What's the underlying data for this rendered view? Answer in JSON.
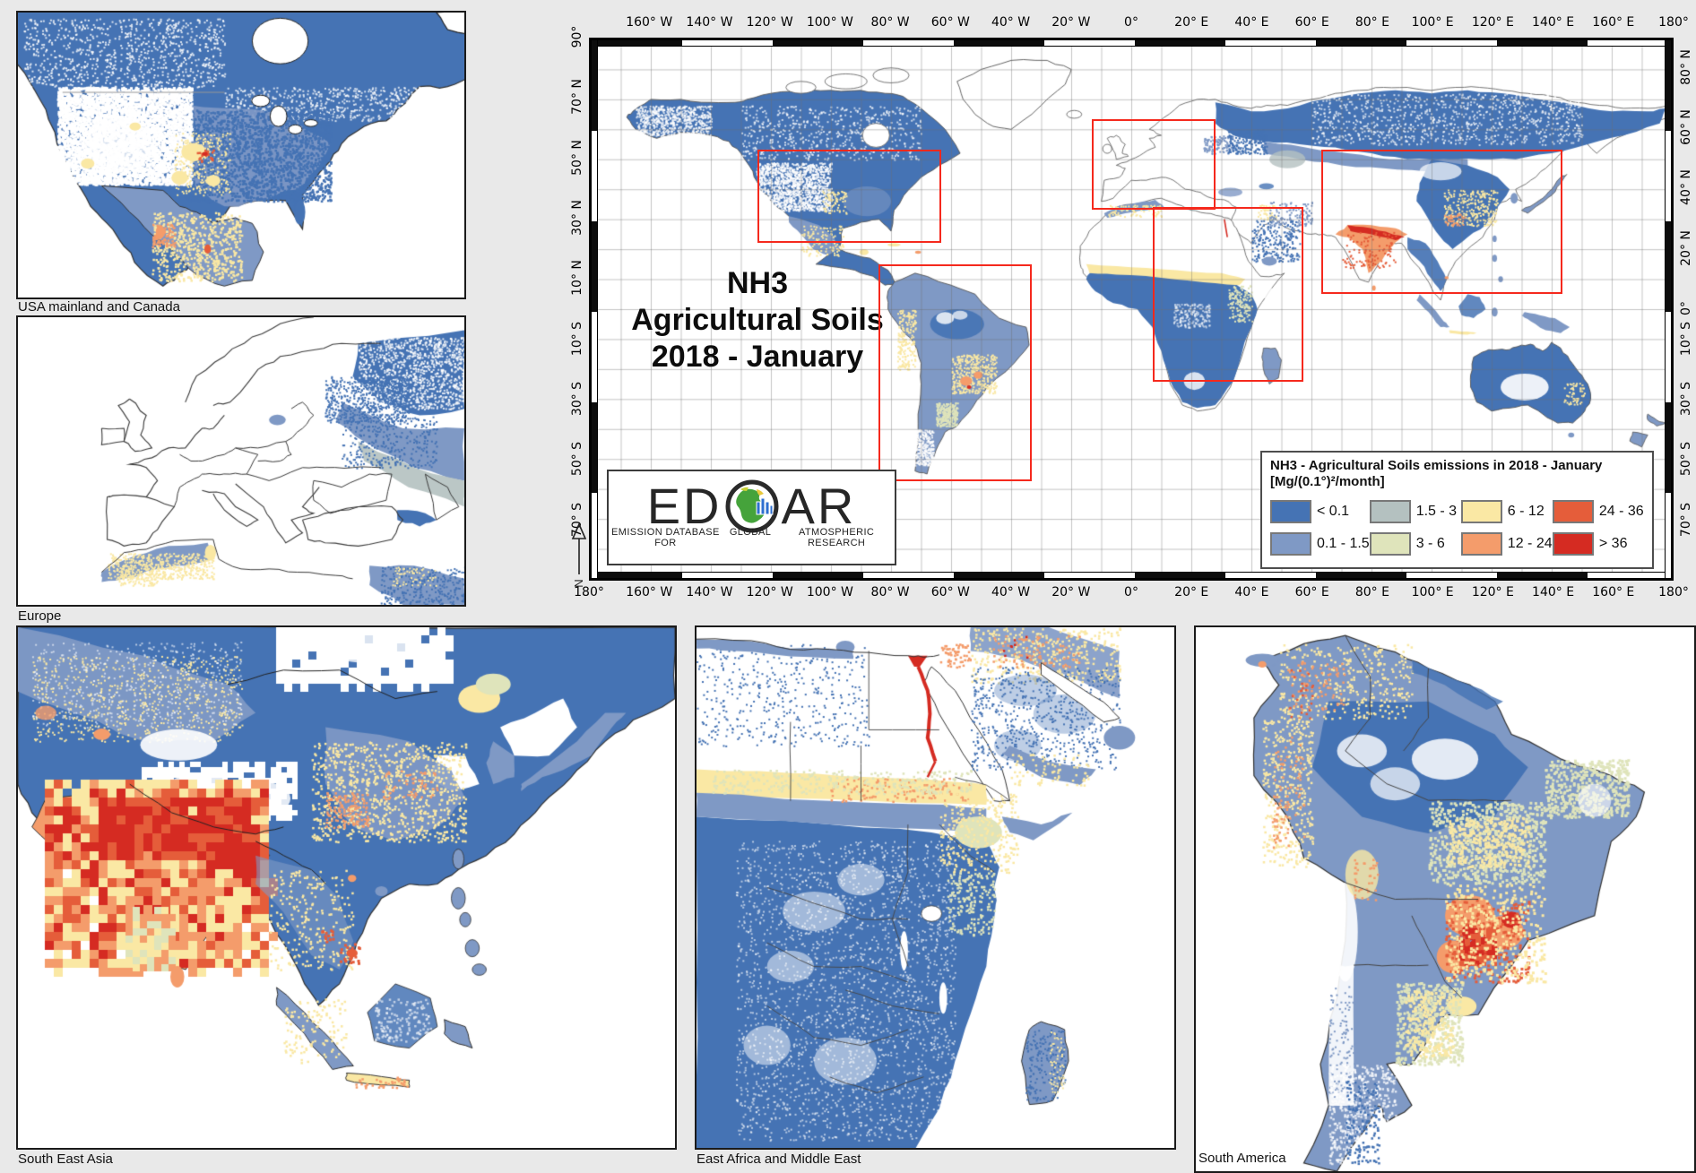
{
  "page": {
    "background": "#e9e9e9"
  },
  "main_map": {
    "title_lines": [
      "NH3",
      "Agricultural Soils",
      "2018 - January"
    ],
    "axes": {
      "top": [
        "160° W",
        "140° W",
        "120° W",
        "100° W",
        "80° W",
        "60° W",
        "40° W",
        "20° W",
        "0°",
        "20° E",
        "40° E",
        "60° E",
        "80° E",
        "100° E",
        "120° E",
        "140° E",
        "160° E",
        "180°"
      ],
      "bottom": [
        "180°",
        "160° W",
        "140° W",
        "120° W",
        "100° W",
        "80° W",
        "60° W",
        "40° W",
        "20° W",
        "0°",
        "20° E",
        "40° E",
        "60° E",
        "80° E",
        "100° E",
        "120° E",
        "140° E",
        "160° E",
        "180°"
      ],
      "left": [
        "90°",
        "70° N",
        "50° N",
        "30° N",
        "10° N",
        "10° S",
        "30° S",
        "50° S",
        "70° S"
      ],
      "right": [
        "80° N",
        "60° N",
        "40° N",
        "20° N",
        "0°",
        "10° S",
        "30° S",
        "50° S",
        "70° S"
      ]
    },
    "north_arrow_label": "N",
    "graticule_step_deg": 10
  },
  "legend": {
    "title_line1": "NH3 - Agricultural Soils emissions in 2018 - January",
    "title_line2": "[Mg/(0.1°)²/month]",
    "entries": [
      {
        "label": "< 0.1",
        "color": "#4573b4"
      },
      {
        "label": "0.1 - 1.5",
        "color": "#7f99c5"
      },
      {
        "label": "1.5 - 3",
        "color": "#b4c1c0"
      },
      {
        "label": "3 - 6",
        "color": "#dfe4bb"
      },
      {
        "label": "6 - 12",
        "color": "#fae8a4"
      },
      {
        "label": "12 - 24",
        "color": "#f49c6b"
      },
      {
        "label": "24 - 36",
        "color": "#e55d3a"
      },
      {
        "label": "> 36",
        "color": "#d52b22"
      }
    ]
  },
  "logo": {
    "word_left": "ED",
    "word_right": "AR",
    "subtitle_parts": [
      "EMISSION DATABASE FOR",
      "GLOBAL",
      "ATMOSPHERIC RESEARCH"
    ]
  },
  "insets": {
    "usa": {
      "label": "USA mainland and Canada"
    },
    "europe": {
      "label": "Europe"
    },
    "south_east_asia": {
      "label": "South East Asia"
    },
    "east_africa": {
      "label": "East Africa and Middle East"
    },
    "south_america": {
      "label": "South America"
    }
  },
  "highlights": {
    "color": "#f5291d",
    "regions": [
      {
        "id": "usa",
        "lon": [
          -124,
          -63
        ],
        "lat": [
          22,
          53
        ]
      },
      {
        "id": "europe",
        "lon": [
          -13,
          28
        ],
        "lat": [
          33,
          63
        ]
      },
      {
        "id": "south-america",
        "lon": [
          -84,
          -33
        ],
        "lat": [
          -57,
          15
        ]
      },
      {
        "id": "africa",
        "lon": [
          7,
          57
        ],
        "lat": [
          -24,
          34
        ]
      },
      {
        "id": "south-east-asia",
        "lon": [
          63,
          143
        ],
        "lat": [
          5,
          53
        ]
      }
    ]
  }
}
